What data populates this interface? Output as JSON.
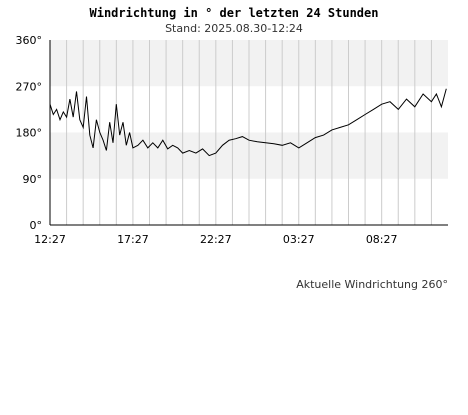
{
  "chart_data": {
    "type": "line",
    "title": "Windrichtung in ° der letzten 24 Stunden",
    "subtitle": "Stand: 2025.08.30-12:24",
    "ylim": [
      0,
      360
    ],
    "y_ticks": [
      "0°",
      "90°",
      "180°",
      "270°",
      "360°"
    ],
    "y_tick_values": [
      0,
      90,
      180,
      270,
      360
    ],
    "x_range": [
      0,
      24
    ],
    "x_ticks": [
      "12:27",
      "17:27",
      "22:27",
      "03:27",
      "08:27"
    ],
    "x_tick_values": [
      0,
      5,
      10,
      15,
      20
    ],
    "grid": true,
    "colors": {
      "band": "#f2f2f2",
      "grid": "#cccccc",
      "axis": "#000000",
      "line": "#000000"
    },
    "series": [
      {
        "x": [
          0.0,
          0.2,
          0.4,
          0.6,
          0.8,
          1.0,
          1.2,
          1.4,
          1.6,
          1.8,
          2.0,
          2.2,
          2.4,
          2.6,
          2.8,
          3.0,
          3.2,
          3.4,
          3.6,
          3.8,
          4.0,
          4.2,
          4.4,
          4.6,
          4.8,
          5.0,
          5.3,
          5.6,
          5.9,
          6.2,
          6.5,
          6.8,
          7.1,
          7.4,
          7.7,
          8.0,
          8.4,
          8.8,
          9.2,
          9.6,
          10.0,
          10.4,
          10.8,
          11.2,
          11.6,
          12.0,
          12.5,
          13.0,
          13.5,
          14.0,
          14.5,
          15.0,
          15.5,
          16.0,
          16.5,
          17.0,
          17.5,
          18.0,
          18.5,
          19.0,
          19.5,
          20.0,
          20.5,
          21.0,
          21.5,
          22.0,
          22.5,
          23.0,
          23.3,
          23.6,
          23.9
        ],
        "y": [
          235,
          215,
          225,
          205,
          220,
          210,
          245,
          210,
          260,
          205,
          190,
          250,
          175,
          150,
          205,
          180,
          165,
          145,
          200,
          160,
          235,
          175,
          200,
          155,
          180,
          150,
          155,
          165,
          150,
          160,
          150,
          165,
          148,
          155,
          150,
          140,
          145,
          140,
          148,
          135,
          140,
          155,
          165,
          168,
          172,
          165,
          162,
          160,
          158,
          155,
          160,
          150,
          160,
          170,
          175,
          185,
          190,
          195,
          205,
          215,
          225,
          235,
          240,
          225,
          245,
          230,
          255,
          240,
          255,
          230,
          265
        ]
      }
    ]
  },
  "footer": {
    "text": "Aktuelle Windrichtung 260°"
  }
}
